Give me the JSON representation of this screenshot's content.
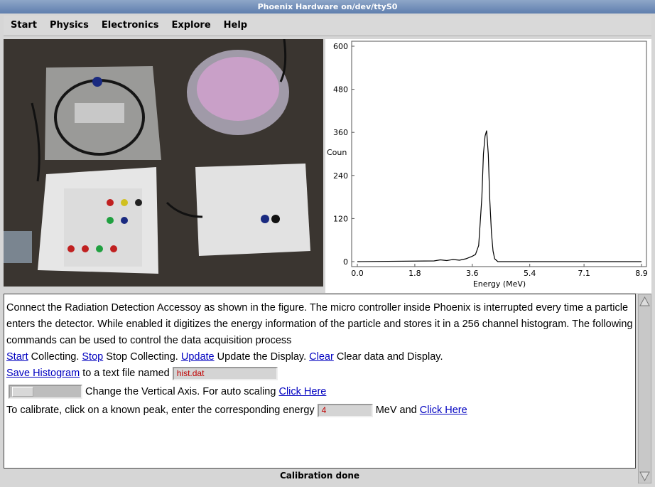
{
  "window": {
    "title": "Phoenix Hardware on/dev/ttyS0"
  },
  "menu": [
    "Start",
    "Physics",
    "Electronics",
    "Explore",
    "Help"
  ],
  "chart_data": {
    "type": "line",
    "x_label": "Energy (MeV)",
    "y_label": "Coun",
    "x": [
      0,
      2.4,
      2.6,
      2.8,
      3.0,
      3.2,
      3.4,
      3.6,
      3.7,
      3.8,
      3.85,
      3.9,
      3.95,
      4.0,
      4.05,
      4.1,
      4.15,
      4.2,
      4.25,
      4.3,
      4.4,
      8.9
    ],
    "values": [
      0,
      2,
      5,
      3,
      6,
      4,
      8,
      15,
      20,
      45,
      110,
      180,
      300,
      350,
      365,
      300,
      170,
      80,
      30,
      8,
      0,
      0
    ],
    "color": "#000000",
    "xlim": [
      0,
      8.9
    ],
    "xticks": [
      {
        "value": 0,
        "label": "0.0"
      },
      1.8,
      3.6,
      5.4,
      7.1,
      8.9
    ],
    "ylim": [
      0,
      600
    ],
    "yticks": [
      0,
      120,
      240,
      360,
      480,
      600
    ]
  },
  "panel": {
    "intro": "Connect the Radiation Detection Accessoy as shown in the figure. The micro controller inside Phoenix is interrupted every time a particle enters the detector. While enabled it digitizes the energy information of the particle and stores it in a 256 channel histogram. The following commands can be used to control the data acquisition process",
    "rows": [
      [
        {
          "link": "Start"
        },
        {
          "text": "Collecting."
        },
        {
          "link": "Stop"
        },
        {
          "text": "Stop Collecting."
        },
        {
          "link": "Update"
        },
        {
          "text": "Update the Display."
        },
        {
          "link": "Clear"
        },
        {
          "text": "Clear data and Display."
        }
      ],
      [
        {
          "link": "Save Histogram"
        },
        {
          "text": "to a text file named"
        },
        {
          "input": "hist.dat"
        }
      ],
      [
        {
          "slider": true
        },
        {
          "text": "Change the Vertical Axis. For auto scaling"
        },
        {
          "link": "Click Here"
        }
      ],
      [
        {
          "text": "To calibrate, click on a known peak, enter  the corresponding energy"
        },
        {
          "input": "4"
        },
        {
          "text": "MeV and"
        },
        {
          "link": "Click Here"
        }
      ]
    ]
  },
  "status": "Calibration done"
}
